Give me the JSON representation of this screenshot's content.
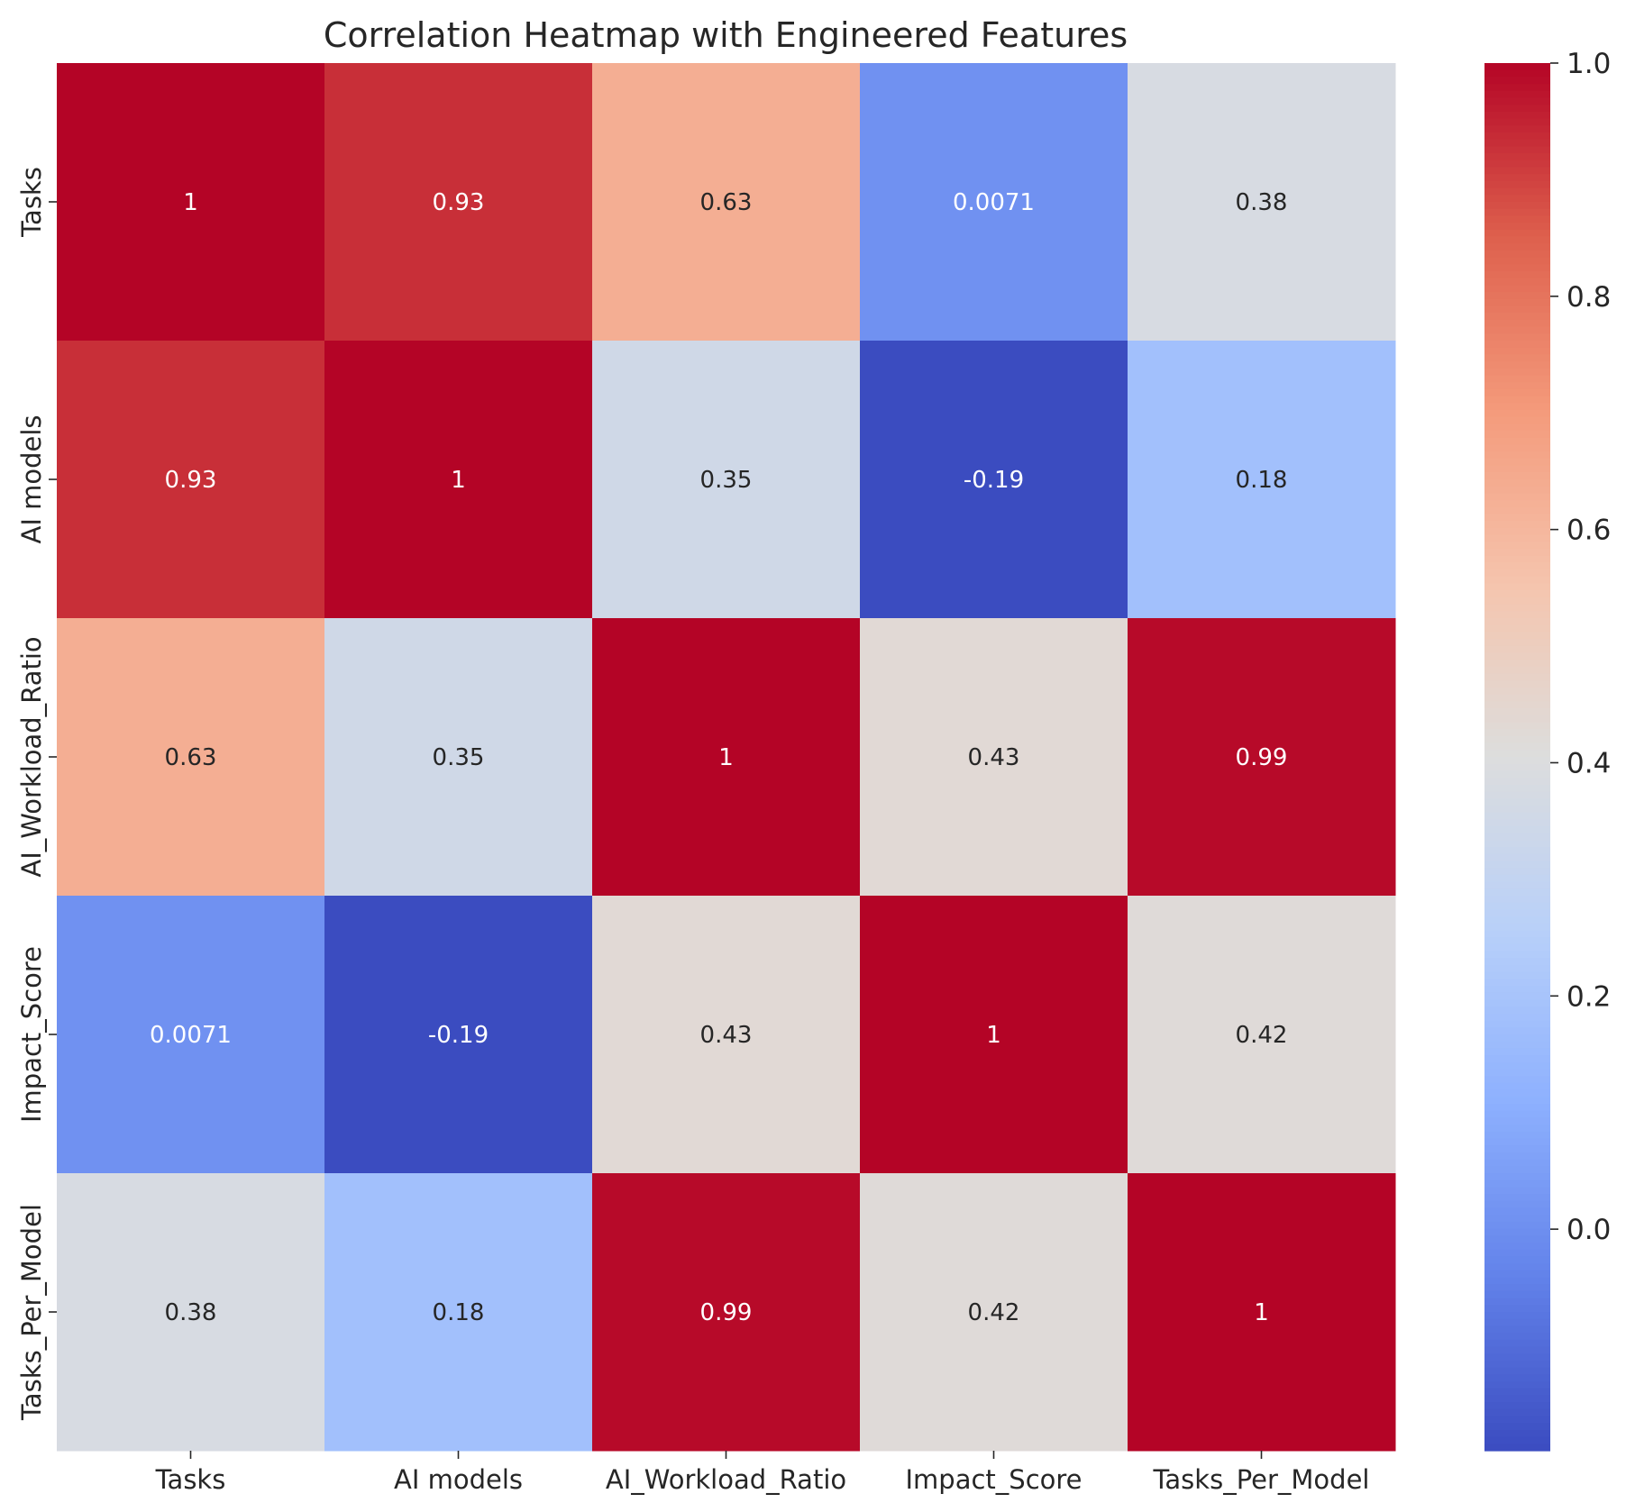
{
  "chart_data": {
    "type": "heatmap",
    "title": "Correlation Heatmap with Engineered Features",
    "xlabel": "",
    "ylabel": "",
    "x_categories": [
      "Tasks",
      "AI models",
      "AI_Workload_Ratio",
      "Impact_Score",
      "Tasks_Per_Model"
    ],
    "y_categories": [
      "Tasks",
      "AI models",
      "AI_Workload_Ratio",
      "Impact_Score",
      "Tasks_Per_Model"
    ],
    "values": [
      [
        1,
        0.93,
        0.63,
        0.0071,
        0.38
      ],
      [
        0.93,
        1,
        0.35,
        -0.19,
        0.18
      ],
      [
        0.63,
        0.35,
        1,
        0.43,
        0.99
      ],
      [
        0.0071,
        -0.19,
        0.43,
        1,
        0.42
      ],
      [
        0.38,
        0.18,
        0.99,
        0.42,
        1
      ]
    ],
    "annotations": [
      [
        "1",
        "0.93",
        "0.63",
        "0.0071",
        "0.38"
      ],
      [
        "0.93",
        "1",
        "0.35",
        "-0.19",
        "0.18"
      ],
      [
        "0.63",
        "0.35",
        "1",
        "0.43",
        "0.99"
      ],
      [
        "0.0071",
        "-0.19",
        "0.43",
        "1",
        "0.42"
      ],
      [
        "0.38",
        "0.18",
        "0.99",
        "0.42",
        "1"
      ]
    ],
    "colormap": "coolwarm",
    "colorbar": {
      "vmin": -0.19,
      "vmax": 1.0,
      "ticks": [
        0.0,
        0.2,
        0.4,
        0.6,
        0.8,
        1.0
      ],
      "tick_labels": [
        "0.0",
        "0.2",
        "0.4",
        "0.6",
        "0.8",
        "1.0"
      ]
    },
    "grid": false,
    "legend": "colorbar-right"
  }
}
